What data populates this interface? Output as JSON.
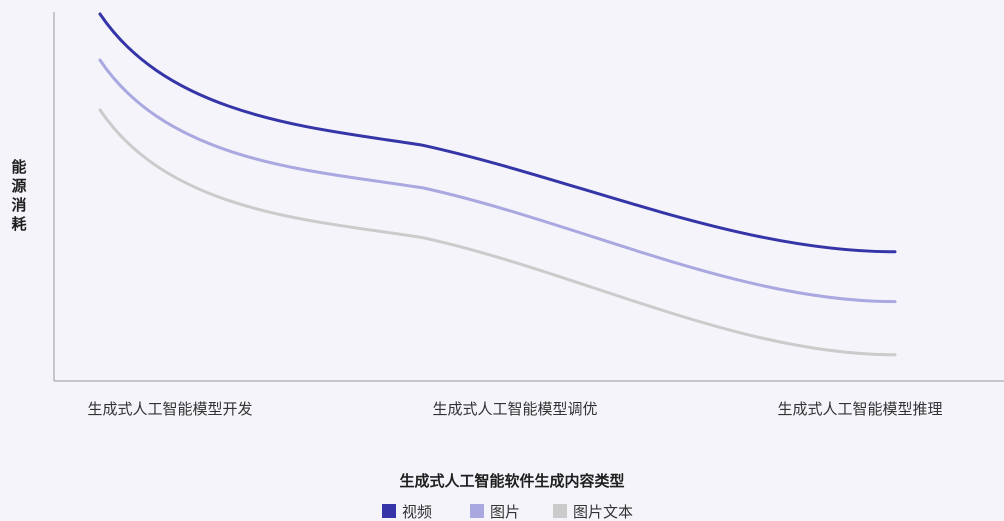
{
  "chart_data": {
    "type": "line",
    "categories": [
      "生成式人工智能模型开发",
      "生成式人工智能模型调优",
      "生成式人工智能模型推理"
    ],
    "xlabel": "生成式人工智能软件生成内容类型",
    "ylabel": "能源消耗",
    "grid": false,
    "legend_position": "bottom",
    "series": [
      {
        "name": "视频",
        "color": "#3535a8",
        "values": [
          100,
          63,
          33
        ]
      },
      {
        "name": "图片",
        "color": "#a9a8e0",
        "values": [
          87,
          51,
          19
        ]
      },
      {
        "name": "图片文本",
        "color": "#cbcbcb",
        "values": [
          73,
          37,
          4
        ]
      }
    ]
  }
}
